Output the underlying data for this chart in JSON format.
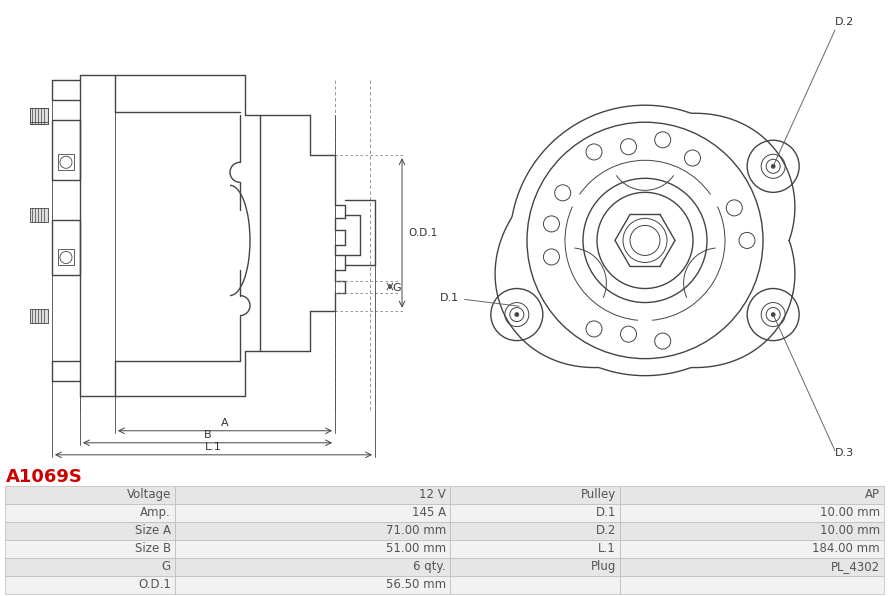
{
  "title": "A1069S",
  "title_color": "#cc0000",
  "bg_color": "#ffffff",
  "table": {
    "left_col": [
      [
        "Voltage",
        "12 V"
      ],
      [
        "Amp.",
        "145 A"
      ],
      [
        "Size A",
        "71.00 mm"
      ],
      [
        "Size B",
        "51.00 mm"
      ],
      [
        "G",
        "6 qty."
      ],
      [
        "O.D.1",
        "56.50 mm"
      ]
    ],
    "right_col": [
      [
        "Pulley",
        "AP"
      ],
      [
        "D.1",
        "10.00 mm"
      ],
      [
        "D.2",
        "10.00 mm"
      ],
      [
        "L.1",
        "184.00 mm"
      ],
      [
        "Plug",
        "PL_4302"
      ],
      [
        "",
        ""
      ]
    ]
  },
  "cell_bg_odd": "#e6e6e6",
  "cell_bg_even": "#f2f2f2",
  "line_color": "#bbbbbb",
  "text_color": "#555555",
  "font_size": 8.5,
  "draw_color": "#444444"
}
